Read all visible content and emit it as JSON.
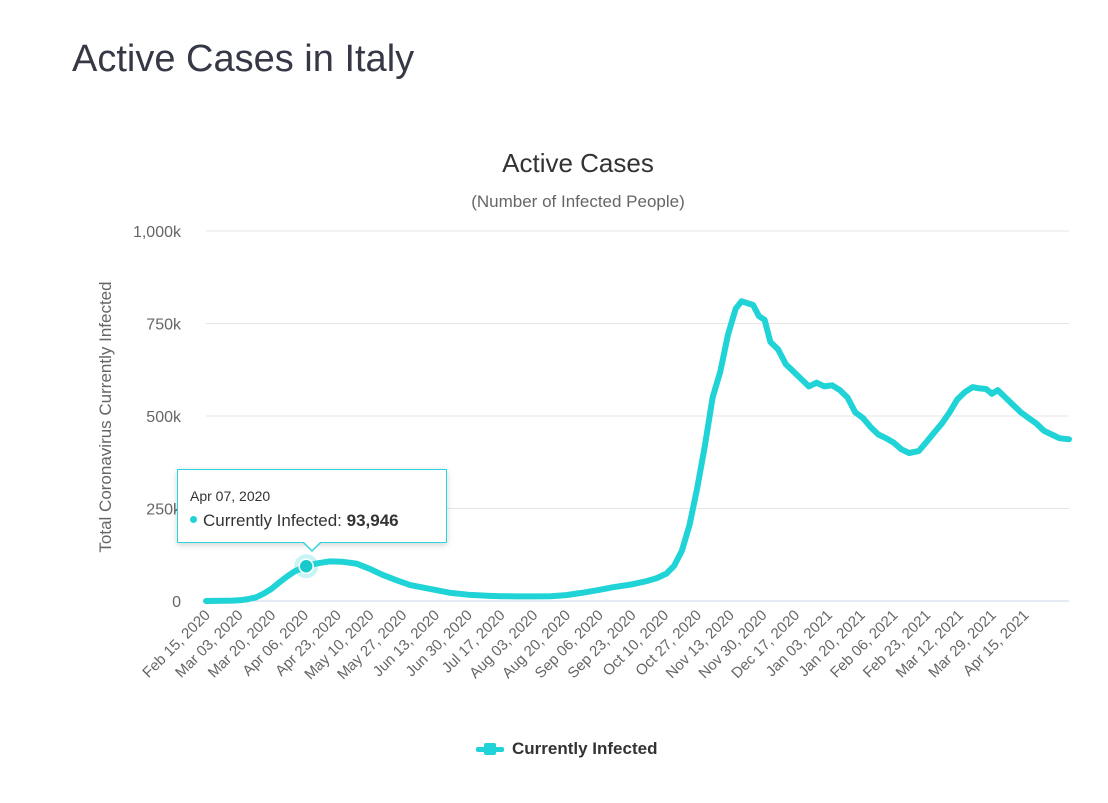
{
  "page": {
    "title": "Active Cases in Italy"
  },
  "colors": {
    "series": "#1fd3d6",
    "grid": "#e6e6e6",
    "axis_text": "#666666",
    "title_text": "#333333"
  },
  "chart_data": {
    "type": "line",
    "title": "Active Cases",
    "subtitle": "(Number of Infected People)",
    "xlabel": "",
    "ylabel": "Total Coronavirus Currently Infected",
    "ylim": [
      0,
      1000000
    ],
    "yticks": [
      0,
      250000,
      500000,
      750000,
      1000000
    ],
    "ytick_labels": [
      "0",
      "250k",
      "500k",
      "750k",
      "1,000k"
    ],
    "xlim": [
      "2020-02-15",
      "2021-05-08"
    ],
    "xtick_labels": [
      "Feb 15, 2020",
      "Mar 03, 2020",
      "Mar 20, 2020",
      "Apr 06, 2020",
      "Apr 23, 2020",
      "May 10, 2020",
      "May 27, 2020",
      "Jun 13, 2020",
      "Jun 30, 2020",
      "Jul 17, 2020",
      "Aug 03, 2020",
      "Aug 20, 2020",
      "Sep 06, 2020",
      "Sep 23, 2020",
      "Oct 10, 2020",
      "Oct 27, 2020",
      "Nov 13, 2020",
      "Nov 30, 2020",
      "Dec 17, 2020",
      "Jan 03, 2021",
      "Jan 20, 2021",
      "Feb 06, 2021",
      "Feb 23, 2021",
      "Mar 12, 2021",
      "Mar 29, 2021",
      "Apr 15, 2021"
    ],
    "grid": true,
    "legend": "bottom-center",
    "series": [
      {
        "name": "Currently Infected",
        "x": [
          "2020-02-15",
          "2020-02-29",
          "2020-03-04",
          "2020-03-08",
          "2020-03-12",
          "2020-03-16",
          "2020-03-20",
          "2020-03-24",
          "2020-03-28",
          "2020-04-01",
          "2020-04-07",
          "2020-04-12",
          "2020-04-19",
          "2020-04-26",
          "2020-05-03",
          "2020-05-10",
          "2020-05-17",
          "2020-05-24",
          "2020-05-31",
          "2020-06-07",
          "2020-06-14",
          "2020-06-21",
          "2020-06-30",
          "2020-07-10",
          "2020-07-17",
          "2020-07-25",
          "2020-08-03",
          "2020-08-12",
          "2020-08-20",
          "2020-08-28",
          "2020-09-06",
          "2020-09-13",
          "2020-09-23",
          "2020-10-01",
          "2020-10-06",
          "2020-10-11",
          "2020-10-15",
          "2020-10-19",
          "2020-10-23",
          "2020-10-27",
          "2020-10-31",
          "2020-11-04",
          "2020-11-08",
          "2020-11-12",
          "2020-11-16",
          "2020-11-19",
          "2020-11-22",
          "2020-11-25",
          "2020-11-28",
          "2020-12-01",
          "2020-12-04",
          "2020-12-08",
          "2020-12-12",
          "2020-12-16",
          "2020-12-20",
          "2020-12-24",
          "2020-12-28",
          "2021-01-01",
          "2021-01-05",
          "2021-01-09",
          "2021-01-13",
          "2021-01-17",
          "2021-01-21",
          "2021-01-25",
          "2021-01-29",
          "2021-02-02",
          "2021-02-06",
          "2021-02-10",
          "2021-02-14",
          "2021-02-19",
          "2021-02-23",
          "2021-02-27",
          "2021-03-03",
          "2021-03-07",
          "2021-03-11",
          "2021-03-15",
          "2021-03-19",
          "2021-03-22",
          "2021-03-26",
          "2021-03-29",
          "2021-04-01",
          "2021-04-05",
          "2021-04-09",
          "2021-04-13",
          "2021-04-17",
          "2021-04-21",
          "2021-04-25",
          "2021-04-29",
          "2021-05-03",
          "2021-05-08"
        ],
        "y": [
          0,
          1000,
          2500,
          5000,
          10000,
          20000,
          33000,
          50000,
          66000,
          80000,
          93946,
          101000,
          107000,
          106000,
          101000,
          87000,
          70000,
          56000,
          43000,
          36000,
          29000,
          22000,
          17000,
          14000,
          13000,
          12500,
          12500,
          13000,
          16000,
          22000,
          30000,
          37000,
          45000,
          54000,
          62000,
          74000,
          95000,
          135000,
          205000,
          305000,
          420000,
          550000,
          620000,
          720000,
          790000,
          810000,
          805000,
          800000,
          770000,
          760000,
          700000,
          680000,
          640000,
          620000,
          600000,
          580000,
          590000,
          580000,
          583000,
          570000,
          550000,
          510000,
          495000,
          470000,
          450000,
          440000,
          428000,
          410000,
          400000,
          405000,
          430000,
          455000,
          480000,
          510000,
          545000,
          565000,
          578000,
          575000,
          573000,
          560000,
          570000,
          550000,
          530000,
          510000,
          495000,
          480000,
          460000,
          450000,
          440000,
          437000
        ]
      }
    ],
    "tooltip": {
      "date": "Apr 07, 2020",
      "series_label": "Currently Infected:",
      "value_text": "93,946",
      "x": "2020-04-07",
      "y": 93946
    }
  }
}
